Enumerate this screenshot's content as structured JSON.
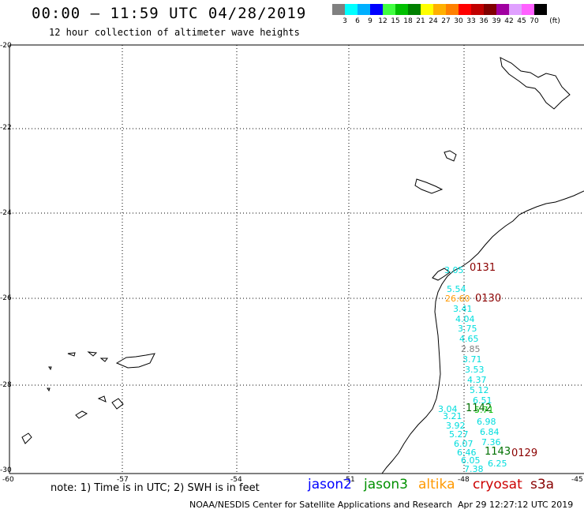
{
  "header": {
    "title": "00:00 – 11:59 UTC 04/28/2019",
    "subtitle": "12 hour collection of altimeter wave heights"
  },
  "color_scale": {
    "colors": [
      "#808080",
      "#00ffff",
      "#00b0ff",
      "#0000ff",
      "#40ff40",
      "#00c000",
      "#008000",
      "#ffff00",
      "#ffb000",
      "#ff8000",
      "#ff0000",
      "#c00000",
      "#800000",
      "#a000a0",
      "#e0a0ff",
      "#ff60ff",
      "#000000"
    ],
    "labels": [
      "3",
      "6",
      "9",
      "12",
      "15",
      "18",
      "21",
      "24",
      "27",
      "30",
      "33",
      "36",
      "39",
      "42",
      "45",
      "70",
      "(ft)"
    ]
  },
  "axes": {
    "lat_labels": [
      "-20",
      "-22",
      "-24",
      "-26",
      "-28",
      "-30"
    ],
    "lon_labels": [
      "-60",
      "-57",
      "-54",
      "-51",
      "-48",
      "-45"
    ]
  },
  "observations": {
    "cyan_values": [
      "3.05",
      "5.54",
      "3.41",
      "4.04",
      "3.75",
      "4.65",
      "3.71",
      "3.53",
      "4.37",
      "5.12",
      "6.51",
      "3.04",
      "3.21",
      "3.92",
      "5.27",
      "6.07",
      "6.46",
      "6.05",
      "7.38",
      "6.98",
      "6.84",
      "7.36",
      "6.25"
    ],
    "gray_value": "2.85",
    "orange_value": "26.60",
    "green_value": "5.71"
  },
  "pass_labels": {
    "red": [
      "0131",
      "0130",
      "0129"
    ],
    "green": [
      "1142",
      "1143"
    ]
  },
  "footer": {
    "note": "note:  1) Time is in UTC;  2) SWH is in feet",
    "legend": [
      {
        "label": "jason2",
        "color": "#0000ff"
      },
      {
        "label": "jason3",
        "color": "#009000"
      },
      {
        "label": "altika",
        "color": "#ff9900"
      },
      {
        "label": "cryosat",
        "color": "#cc0000"
      },
      {
        "label": "s3a",
        "color": "#880000"
      }
    ],
    "credit": "NOAA/NESDIS Center for Satellite Applications and Research",
    "timestamp": "Apr 29 12:27:12 UTC 2019"
  }
}
